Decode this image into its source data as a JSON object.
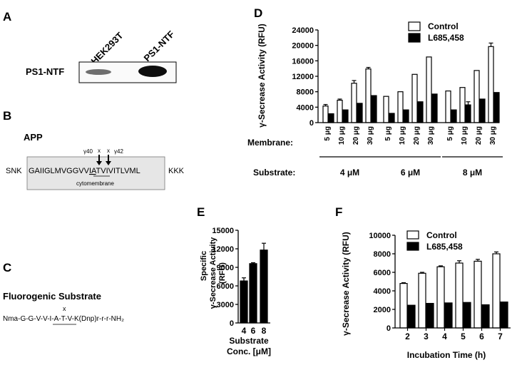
{
  "panels": {
    "A": {
      "letter": "A",
      "lanes": [
        "HEK293T",
        "PS1-NTF"
      ],
      "row_label": "PS1-NTF"
    },
    "B": {
      "letter": "B",
      "title": "APP",
      "left_residues": "SNK",
      "sequence_pre": "GAIIGLMVGGVV",
      "sequence_underlined": "IA",
      "sequence_post": "TVIVITLVML",
      "right_residues": "KKK",
      "site_gamma40": "γ40",
      "site_gamma42": "γ42",
      "cleavage_mark": "x",
      "membrane_label": "cytomembrane"
    },
    "C": {
      "letter": "C",
      "title": "Fluorogenic Substrate",
      "seq_pre": "Nma-G-G-V-",
      "seq_underlined": "V-I-A",
      "seq_post": "-T-V-K(Dnp)r-r-r-NH₂",
      "cleavage_mark": "x"
    },
    "D": {
      "letter": "D"
    },
    "E": {
      "letter": "E"
    },
    "F": {
      "letter": "F"
    }
  },
  "chart_data": [
    {
      "panel": "D",
      "type": "bar",
      "ylabel": "γ-Secrease Activity (RFU)",
      "ylim": [
        0,
        24000
      ],
      "yticks": [
        0,
        4000,
        8000,
        12000,
        16000,
        20000,
        24000
      ],
      "row_label_membrane": "Membrane:",
      "row_label_substrate": "Substrate:",
      "membrane_levels": [
        "5 μg",
        "10 μg",
        "20 μg",
        "30 μg"
      ],
      "substrate_groups": [
        "4 μM",
        "6 μM",
        "8 μM"
      ],
      "legend": [
        "Control",
        "L685,458"
      ],
      "legend_position": "top-right",
      "series": [
        {
          "name": "Control",
          "color": "#ffffff",
          "values": [
            4300,
            5800,
            10200,
            13900,
            6800,
            8000,
            12500,
            17000,
            8200,
            9100,
            13500,
            19700
          ],
          "errors": [
            400,
            300,
            700,
            400,
            0,
            0,
            0,
            0,
            0,
            0,
            0,
            900
          ]
        },
        {
          "name": "L685,458",
          "color": "#000000",
          "values": [
            2300,
            3300,
            5000,
            7000,
            2400,
            3300,
            5400,
            7400,
            3300,
            4600,
            6100,
            7800
          ],
          "errors": [
            0,
            0,
            0,
            0,
            0,
            0,
            0,
            0,
            0,
            800,
            0,
            0
          ]
        }
      ]
    },
    {
      "panel": "E",
      "type": "bar",
      "ylabel": "Specific γ-Secrease Activity (RFU)",
      "xlabel": "Substrate Conc. [μM]",
      "categories": [
        "4",
        "6",
        "8"
      ],
      "ylim": [
        0,
        15000
      ],
      "yticks": [
        0,
        3000,
        6000,
        9000,
        12000,
        15000
      ],
      "series": [
        {
          "color": "#000000",
          "values": [
            6800,
            9600,
            11800
          ],
          "errors": [
            500,
            150,
            1100
          ]
        }
      ]
    },
    {
      "panel": "F",
      "type": "bar",
      "ylabel": "γ-Secrease Activity (RFU)",
      "xlabel": "Incubation Time (h)",
      "categories": [
        "2",
        "3",
        "4",
        "5",
        "6",
        "7"
      ],
      "ylim": [
        0,
        10000
      ],
      "yticks": [
        0,
        2000,
        4000,
        6000,
        8000,
        10000
      ],
      "legend": [
        "Control",
        "L685,458"
      ],
      "legend_position": "top-left",
      "series": [
        {
          "name": "Control",
          "color": "#ffffff",
          "values": [
            4800,
            5900,
            6600,
            7000,
            7200,
            8000
          ],
          "errors": [
            80,
            100,
            100,
            250,
            200,
            200
          ]
        },
        {
          "name": "L685,458",
          "color": "#000000",
          "values": [
            2450,
            2650,
            2700,
            2750,
            2500,
            2800
          ],
          "errors": [
            0,
            0,
            0,
            0,
            0,
            0
          ]
        }
      ]
    }
  ]
}
